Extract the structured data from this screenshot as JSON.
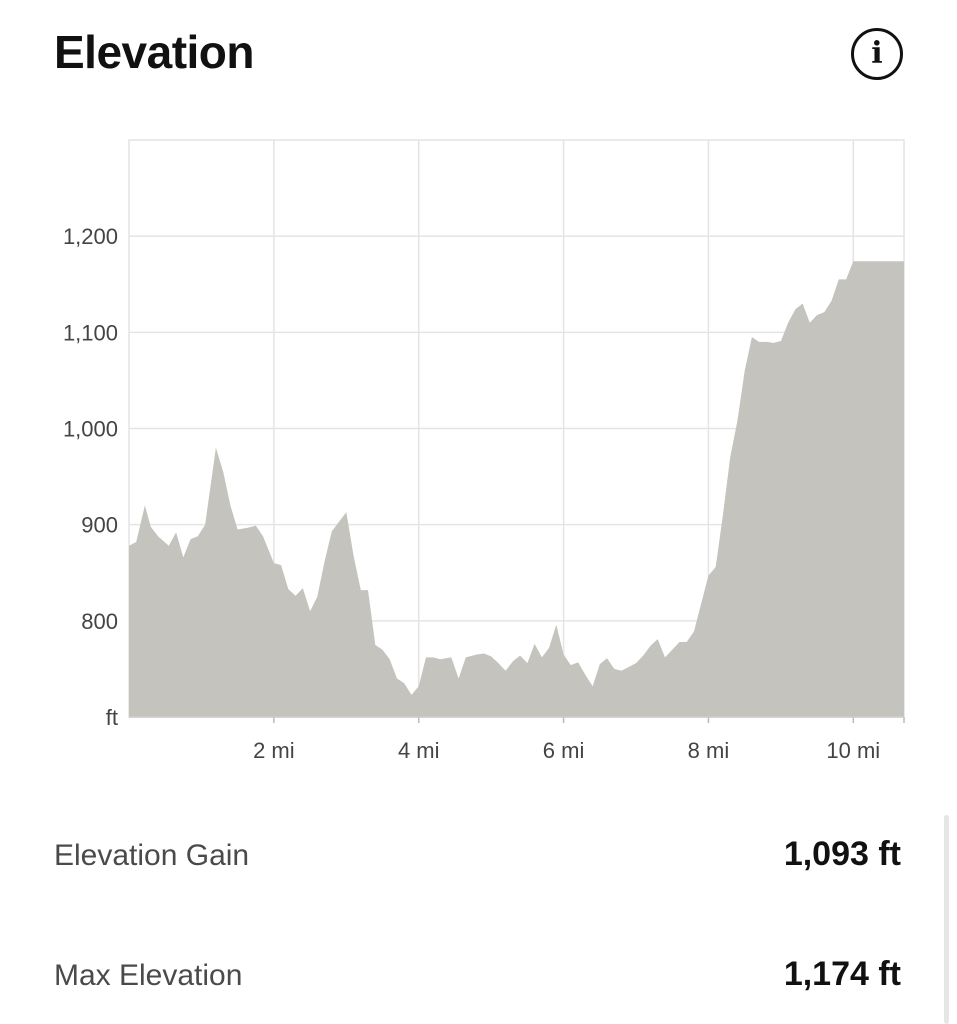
{
  "header": {
    "title": "Elevation",
    "info_icon": "info-circle-icon",
    "info_glyph": "i"
  },
  "chart_data": {
    "type": "area",
    "x_unit": "mi",
    "y_unit_label": "ft",
    "xlim": [
      0,
      10.7
    ],
    "ylim": [
      700,
      1300
    ],
    "x_ticks": [
      {
        "value": 2,
        "label": "2 mi"
      },
      {
        "value": 4,
        "label": "4 mi"
      },
      {
        "value": 6,
        "label": "6 mi"
      },
      {
        "value": 8,
        "label": "8 mi"
      },
      {
        "value": 10,
        "label": "10 mi"
      }
    ],
    "y_ticks": [
      {
        "value": 800,
        "label": "800"
      },
      {
        "value": 900,
        "label": "900"
      },
      {
        "value": 1000,
        "label": "1,000"
      },
      {
        "value": 1100,
        "label": "1,100"
      },
      {
        "value": 1200,
        "label": "1,200"
      }
    ],
    "grid": true,
    "fill_color": "#c4c3be",
    "grid_color": "#e4e4e4",
    "series": [
      {
        "x": [
          0,
          0.1,
          0.22,
          0.3,
          0.4,
          0.55,
          0.65,
          0.75,
          0.85,
          0.95,
          1.05,
          1.2,
          1.3,
          1.4,
          1.5,
          1.65,
          1.75,
          1.85,
          2.0,
          2.1,
          2.2,
          2.3,
          2.4,
          2.5,
          2.6,
          2.7,
          2.8,
          2.9,
          3.0,
          3.1,
          3.2,
          3.3,
          3.4,
          3.5,
          3.6,
          3.7,
          3.8,
          3.9,
          4.0,
          4.1,
          4.2,
          4.3,
          4.45,
          4.55,
          4.65,
          4.8,
          4.9,
          5.0,
          5.1,
          5.2,
          5.3,
          5.4,
          5.5,
          5.6,
          5.7,
          5.8,
          5.9,
          6.0,
          6.1,
          6.2,
          6.3,
          6.4,
          6.5,
          6.6,
          6.7,
          6.8,
          6.9,
          7.0,
          7.1,
          7.2,
          7.3,
          7.4,
          7.5,
          7.6,
          7.7,
          7.8,
          7.9,
          8.0,
          8.1,
          8.2,
          8.3,
          8.4,
          8.5,
          8.6,
          8.7,
          8.8,
          8.9,
          9.0,
          9.1,
          9.2,
          9.3,
          9.4,
          9.5,
          9.6,
          9.7,
          9.8,
          9.9,
          10.0,
          10.1,
          10.2,
          10.3,
          10.4,
          10.5,
          10.6,
          10.7
        ],
        "y": [
          878,
          882,
          920,
          898,
          888,
          878,
          892,
          866,
          885,
          888,
          900,
          980,
          955,
          920,
          895,
          897,
          899,
          888,
          860,
          858,
          833,
          826,
          834,
          810,
          825,
          862,
          893,
          903,
          913,
          868,
          832,
          832,
          775,
          770,
          760,
          740,
          735,
          723,
          732,
          762,
          762,
          760,
          762,
          740,
          762,
          765,
          766,
          763,
          756,
          748,
          758,
          764,
          756,
          776,
          762,
          772,
          796,
          765,
          754,
          757,
          744,
          732,
          755,
          761,
          750,
          748,
          752,
          756,
          764,
          774,
          781,
          762,
          770,
          778,
          778,
          789,
          818,
          847,
          856,
          910,
          970,
          1008,
          1060,
          1095,
          1090,
          1090,
          1089,
          1091,
          1110,
          1124,
          1130,
          1110,
          1118,
          1121,
          1133,
          1155,
          1155,
          1174,
          1174,
          1174,
          1174,
          1174,
          1174,
          1174,
          1174
        ]
      }
    ]
  },
  "stats": [
    {
      "label": "Elevation Gain",
      "value": "1,093 ft"
    },
    {
      "label": "Max Elevation",
      "value": "1,174 ft"
    }
  ]
}
